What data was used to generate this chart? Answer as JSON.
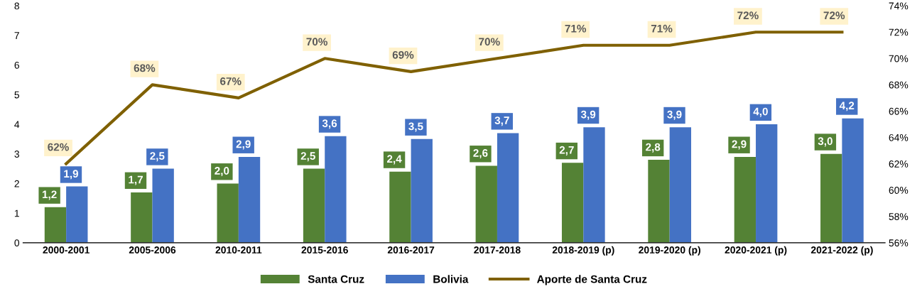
{
  "chart_data": {
    "type": "bar",
    "categories": [
      "2000-2001",
      "2005-2006",
      "2010-2011",
      "2015-2016",
      "2016-2017",
      "2017-2018",
      "2018-2019 (p)",
      "2019-2020 (p)",
      "2020-2021 (p)",
      "2021-2022 (p)"
    ],
    "series": [
      {
        "name": "Santa Cruz",
        "color": "#548235",
        "values": [
          1.2,
          1.7,
          2.0,
          2.5,
          2.4,
          2.6,
          2.7,
          2.8,
          2.9,
          3.0
        ],
        "value_labels": [
          "1,2",
          "1,7",
          "2,0",
          "2,5",
          "2,4",
          "2,6",
          "2,7",
          "2,8",
          "2,9",
          "3,0"
        ]
      },
      {
        "name": "Bolivia",
        "color": "#4472c4",
        "values": [
          1.9,
          2.5,
          2.9,
          3.6,
          3.5,
          3.7,
          3.9,
          3.9,
          4.0,
          4.2
        ],
        "value_labels": [
          "1,9",
          "2,5",
          "2,9",
          "3,6",
          "3,5",
          "3,7",
          "3,9",
          "3,9",
          "4,0",
          "4,2"
        ]
      },
      {
        "name": "Aporte de Santa Cruz",
        "type": "line",
        "axis": "y2",
        "color": "#7f6000",
        "values": [
          62,
          68,
          67,
          70,
          69,
          70,
          71,
          71,
          72,
          72
        ],
        "value_labels": [
          "62%",
          "68%",
          "67%",
          "70%",
          "69%",
          "70%",
          "71%",
          "71%",
          "72%",
          "72%"
        ]
      }
    ],
    "ylim": [
      0,
      8
    ],
    "yticks": [
      0,
      1,
      2,
      3,
      4,
      5,
      6,
      7,
      8
    ],
    "y2lim": [
      56,
      74
    ],
    "y2ticks": [
      {
        "value": 56,
        "label": "56%"
      },
      {
        "value": 58,
        "label": "58%"
      },
      {
        "value": 60,
        "label": "60%"
      },
      {
        "value": 62,
        "label": "62%"
      },
      {
        "value": 64,
        "label": "64%"
      },
      {
        "value": 66,
        "label": "66%"
      },
      {
        "value": 68,
        "label": "68%"
      },
      {
        "value": 70,
        "label": "70%"
      },
      {
        "value": 72,
        "label": "72%"
      },
      {
        "value": 74,
        "label": "74%"
      }
    ],
    "grid": false,
    "legend": "bottom",
    "marker": "none"
  }
}
